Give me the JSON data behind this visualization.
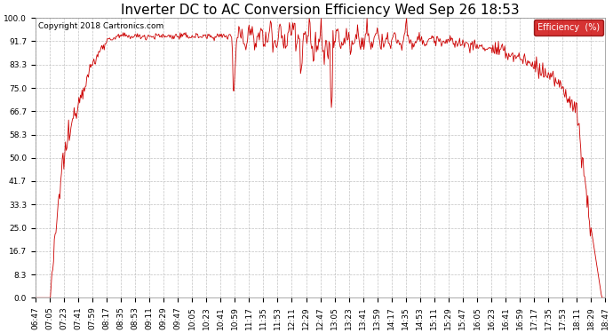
{
  "title": "Inverter DC to AC Conversion Efficiency Wed Sep 26 18:53",
  "copyright": "Copyright 2018 Cartronics.com",
  "legend_label": "Efficiency  (%)",
  "legend_bg": "#cc0000",
  "legend_text_color": "#ffffff",
  "line_color": "#cc0000",
  "bg_color": "#ffffff",
  "plot_bg_color": "#ffffff",
  "grid_color": "#bbbbbb",
  "ylim": [
    0.0,
    100.0
  ],
  "yticks": [
    0.0,
    8.3,
    16.7,
    25.0,
    33.3,
    41.7,
    50.0,
    58.3,
    66.7,
    75.0,
    83.3,
    91.7,
    100.0
  ],
  "title_fontsize": 11,
  "axis_fontsize": 6.5,
  "copyright_fontsize": 6.5,
  "x_tick_labels": [
    "06:47",
    "07:05",
    "07:23",
    "07:41",
    "07:59",
    "08:17",
    "08:35",
    "08:53",
    "09:11",
    "09:29",
    "09:47",
    "10:05",
    "10:23",
    "10:41",
    "10:59",
    "11:17",
    "11:35",
    "11:53",
    "12:11",
    "12:29",
    "12:47",
    "13:05",
    "13:23",
    "13:41",
    "13:59",
    "14:17",
    "14:35",
    "14:53",
    "15:11",
    "15:29",
    "15:47",
    "16:05",
    "16:23",
    "16:41",
    "16:59",
    "17:17",
    "17:35",
    "17:53",
    "18:11",
    "18:29",
    "18:47"
  ]
}
